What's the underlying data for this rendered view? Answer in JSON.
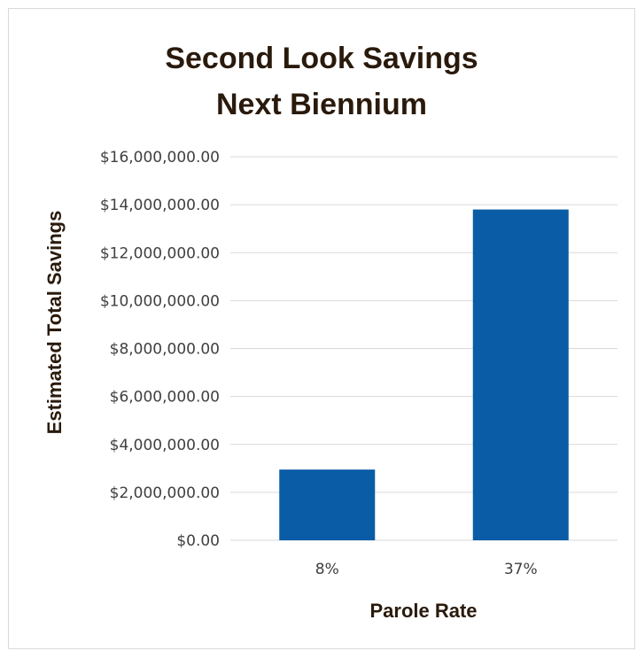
{
  "chart_data": {
    "type": "bar",
    "title_lines": [
      "Second Look Savings",
      "Next Biennium"
    ],
    "xlabel": "Parole Rate",
    "ylabel": "Estimated Total Savings",
    "categories": [
      "8%",
      "37%"
    ],
    "values": [
      2950000,
      13800000
    ],
    "ylim": [
      0,
      16000000
    ],
    "y_ticks": [
      0,
      2000000,
      4000000,
      6000000,
      8000000,
      10000000,
      12000000,
      14000000,
      16000000
    ],
    "y_tick_labels": [
      "$0.00",
      "$2,000,000.00",
      "$4,000,000.00",
      "$6,000,000.00",
      "$8,000,000.00",
      "$10,000,000.00",
      "$12,000,000.00",
      "$14,000,000.00",
      "$16,000,000.00"
    ],
    "grid": true,
    "legend": "none",
    "colors": {
      "bar": "#0a5ca6",
      "grid": "#d9d9d9",
      "title": "#2a1a0c"
    }
  }
}
